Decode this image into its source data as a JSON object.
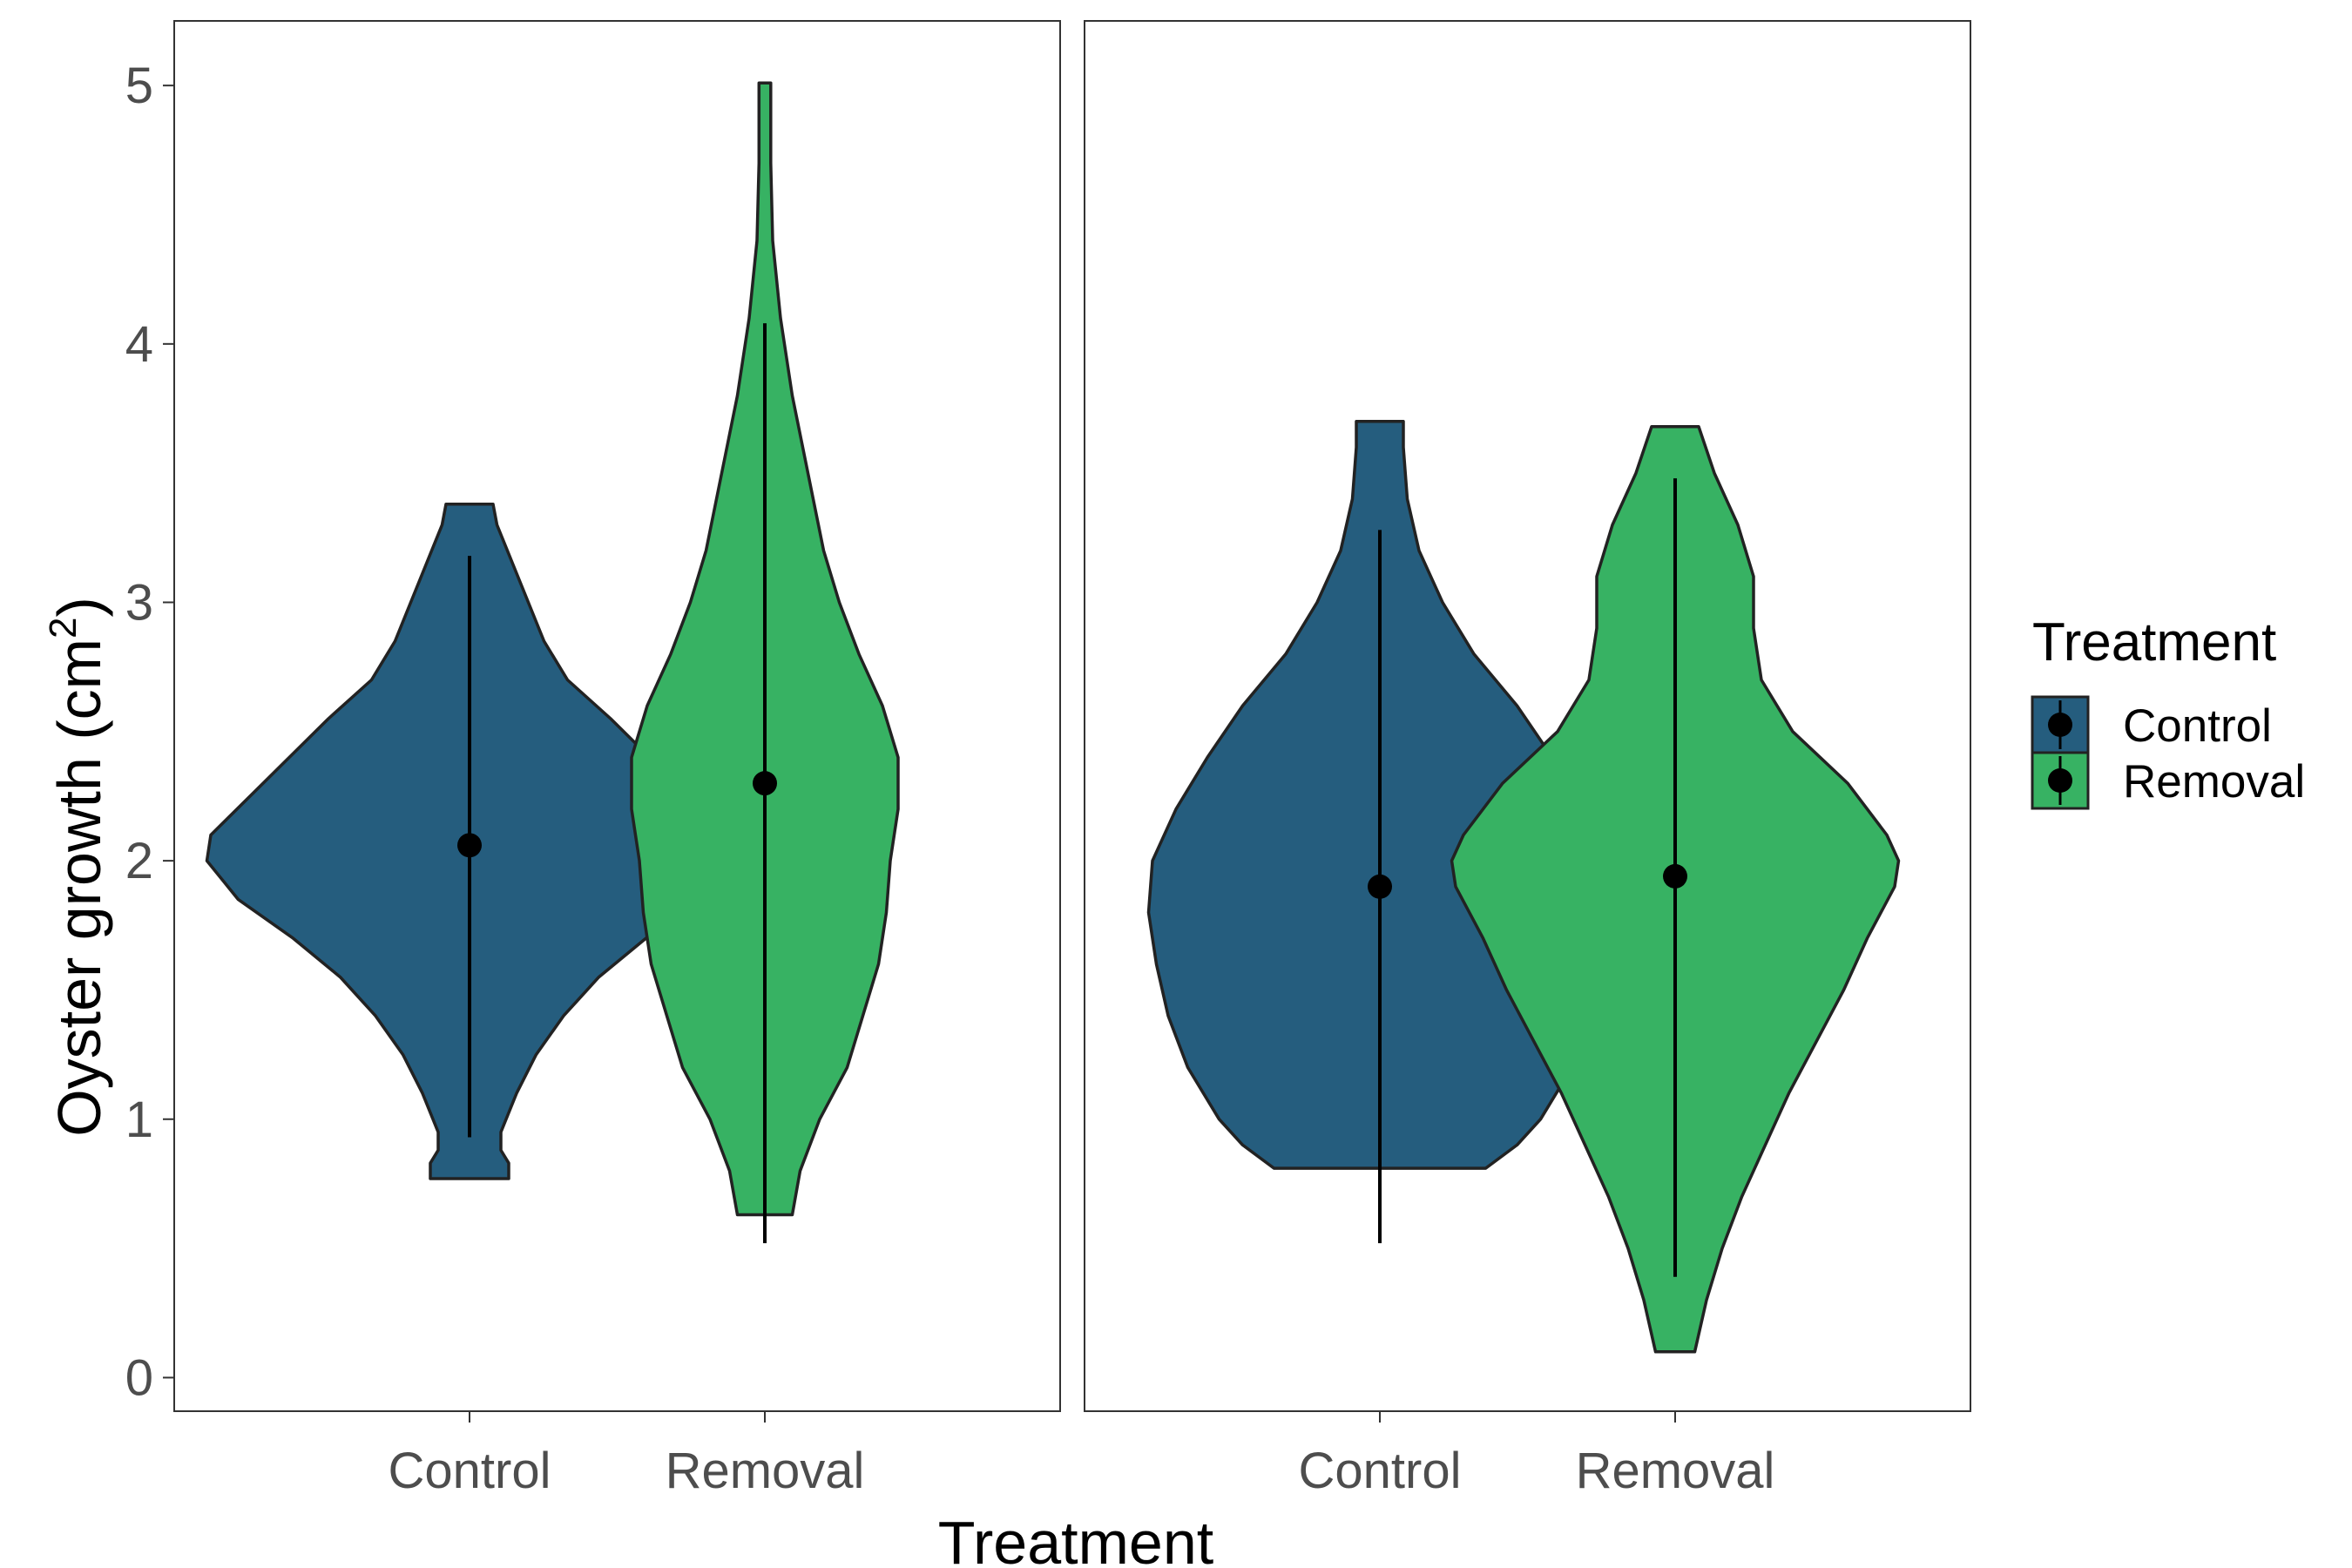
{
  "chart_data": {
    "type": "violin",
    "xlabel": "Treatment",
    "ylabel": "Oyster growth (cm",
    "ylabel_sup": "2",
    "ylabel_end": ")",
    "ylim": [
      -0.13,
      5.25
    ],
    "yticks": [
      0,
      1,
      2,
      3,
      4,
      5
    ],
    "categories": [
      "Control",
      "Removal"
    ],
    "colors": {
      "Control": "#255D7E",
      "Removal": "#37B263"
    },
    "legend": {
      "title": "Treatment",
      "position": "right",
      "entries": [
        "Control",
        "Removal"
      ]
    },
    "panels": [
      {
        "violins": [
          {
            "group": "Control",
            "ymin": 0.77,
            "ymax": 3.38,
            "profile": [
              [
                0.77,
                0.1
              ],
              [
                0.83,
                0.1
              ],
              [
                0.88,
                0.08
              ],
              [
                0.95,
                0.08
              ],
              [
                1.1,
                0.12
              ],
              [
                1.25,
                0.17
              ],
              [
                1.4,
                0.24
              ],
              [
                1.55,
                0.33
              ],
              [
                1.7,
                0.45
              ],
              [
                1.85,
                0.59
              ],
              [
                2.0,
                0.67
              ],
              [
                2.1,
                0.66
              ],
              [
                2.25,
                0.56
              ],
              [
                2.4,
                0.46
              ],
              [
                2.55,
                0.36
              ],
              [
                2.7,
                0.25
              ],
              [
                2.85,
                0.19
              ],
              [
                3.0,
                0.15
              ],
              [
                3.15,
                0.11
              ],
              [
                3.3,
                0.07
              ],
              [
                3.38,
                0.06
              ]
            ],
            "median": 2.06,
            "whisker_low": 0.93,
            "whisker_high": 3.18
          },
          {
            "group": "Removal",
            "ymin": 0.63,
            "ymax": 5.01,
            "profile": [
              [
                0.63,
                0.07
              ],
              [
                0.8,
                0.09
              ],
              [
                1.0,
                0.14
              ],
              [
                1.2,
                0.21
              ],
              [
                1.4,
                0.25
              ],
              [
                1.6,
                0.29
              ],
              [
                1.8,
                0.31
              ],
              [
                2.0,
                0.32
              ],
              [
                2.2,
                0.34
              ],
              [
                2.4,
                0.34
              ],
              [
                2.6,
                0.3
              ],
              [
                2.8,
                0.24
              ],
              [
                3.0,
                0.19
              ],
              [
                3.2,
                0.15
              ],
              [
                3.5,
                0.11
              ],
              [
                3.8,
                0.07
              ],
              [
                4.1,
                0.04
              ],
              [
                4.4,
                0.02
              ],
              [
                4.7,
                0.015
              ],
              [
                5.01,
                0.015
              ]
            ],
            "median": 2.3,
            "whisker_low": 0.52,
            "whisker_high": 4.08
          }
        ]
      },
      {
        "violins": [
          {
            "group": "Control",
            "ymin": 0.81,
            "ymax": 3.7,
            "profile": [
              [
                0.81,
                0.27
              ],
              [
                0.9,
                0.35
              ],
              [
                1.0,
                0.41
              ],
              [
                1.2,
                0.49
              ],
              [
                1.4,
                0.54
              ],
              [
                1.6,
                0.57
              ],
              [
                1.8,
                0.59
              ],
              [
                2.0,
                0.58
              ],
              [
                2.2,
                0.52
              ],
              [
                2.4,
                0.44
              ],
              [
                2.6,
                0.35
              ],
              [
                2.8,
                0.24
              ],
              [
                3.0,
                0.16
              ],
              [
                3.2,
                0.1
              ],
              [
                3.4,
                0.07
              ],
              [
                3.6,
                0.06
              ],
              [
                3.7,
                0.06
              ]
            ],
            "median": 1.9,
            "whisker_low": 0.52,
            "whisker_high": 3.28
          },
          {
            "group": "Removal",
            "ymin": 0.1,
            "ymax": 3.68,
            "profile": [
              [
                0.1,
                0.05
              ],
              [
                0.3,
                0.08
              ],
              [
                0.5,
                0.12
              ],
              [
                0.7,
                0.17
              ],
              [
                0.9,
                0.23
              ],
              [
                1.1,
                0.29
              ],
              [
                1.3,
                0.36
              ],
              [
                1.5,
                0.43
              ],
              [
                1.7,
                0.49
              ],
              [
                1.9,
                0.56
              ],
              [
                2.0,
                0.57
              ],
              [
                2.1,
                0.54
              ],
              [
                2.3,
                0.44
              ],
              [
                2.5,
                0.3
              ],
              [
                2.7,
                0.22
              ],
              [
                2.9,
                0.2
              ],
              [
                3.1,
                0.2
              ],
              [
                3.3,
                0.16
              ],
              [
                3.5,
                0.1
              ],
              [
                3.68,
                0.06
              ]
            ],
            "median": 1.94,
            "whisker_low": 0.39,
            "whisker_high": 3.48
          }
        ]
      }
    ]
  }
}
